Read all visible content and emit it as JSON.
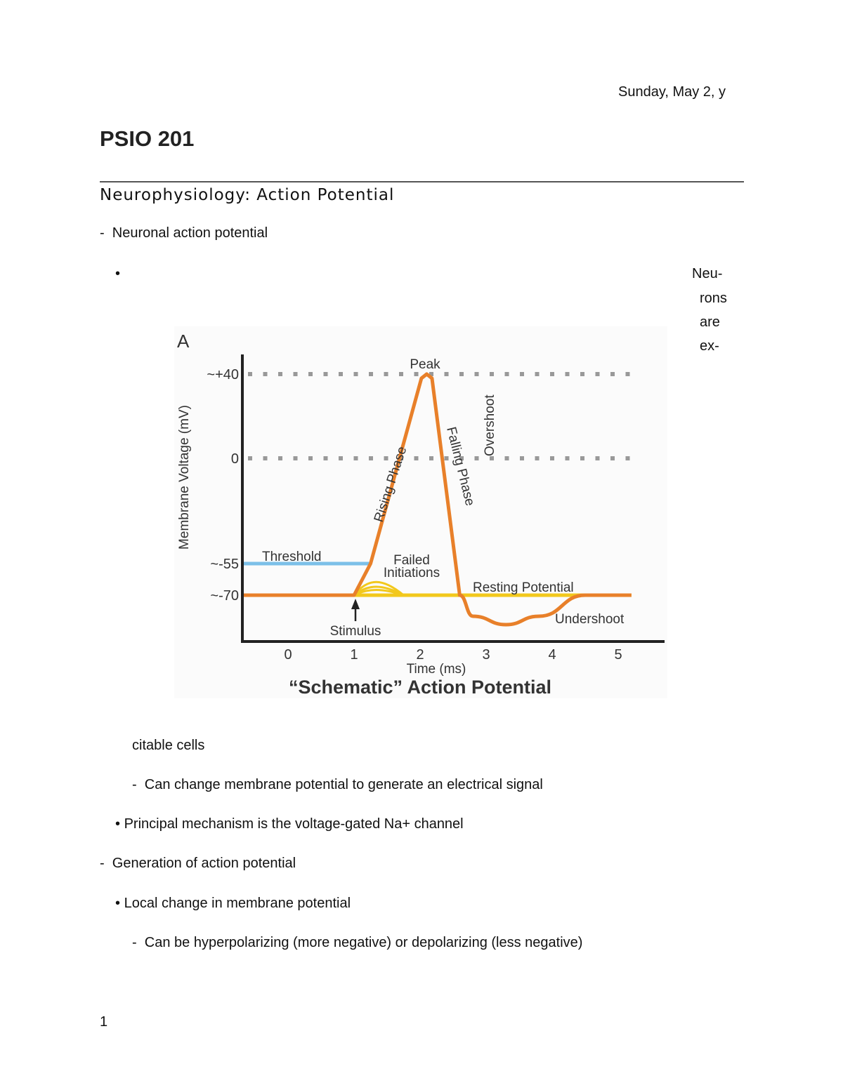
{
  "header": {
    "date": "Sunday, May 2, y"
  },
  "course_title": "PSIO 201",
  "section_heading": "Neurophysiology: Action Potential",
  "bullets": [
    {
      "marker": "-",
      "text": "Neuronal action potential"
    },
    {
      "marker": "•",
      "text": ""
    },
    {
      "text": "citable cells"
    },
    {
      "marker": "-",
      "text": "Can change membrane potential to generate an electrical signal"
    },
    {
      "marker": "•",
      "text": "Principal mechanism is the voltage-gated Na+ channel"
    },
    {
      "marker": "-",
      "text": "Generation of action potential"
    },
    {
      "marker": "•",
      "text": "Local change in membrane potential"
    },
    {
      "marker": "-",
      "text": "Can be hyperpolarizing (more negative) or depolarizing (less negative)"
    }
  ],
  "side_words": [
    "Neu-",
    "rons",
    "are",
    "ex-"
  ],
  "page_number": "1",
  "chart_data": {
    "type": "line",
    "panel_label": "A",
    "title": "“Schematic” Action Potential",
    "xlabel": "Time (ms)",
    "ylabel": "Membrane Voltage (mV)",
    "x_ticks": [
      "0",
      "1",
      "2",
      "3",
      "4",
      "5"
    ],
    "y_ticks": [
      {
        "value": 40,
        "label": "~+40"
      },
      {
        "value": 0,
        "label": "0"
      },
      {
        "value": -55,
        "label": "~-55"
      },
      {
        "value": -70,
        "label": "~-70"
      }
    ],
    "gridlines": "dotted at +40 and 0",
    "series": [
      {
        "color": "#e8802a",
        "points": [
          [
            -0.7,
            -70
          ],
          [
            1,
            -70
          ],
          [
            1.25,
            -55
          ],
          [
            2.02,
            38
          ],
          [
            2.1,
            40
          ],
          [
            2.18,
            38
          ],
          [
            2.6,
            -70
          ],
          [
            2.8,
            -80
          ],
          [
            3.3,
            -84
          ],
          [
            3.8,
            -80
          ],
          [
            4.5,
            -70
          ],
          [
            5.2,
            -70
          ]
        ]
      }
    ],
    "threshold": {
      "value": -55,
      "label": "Threshold",
      "color": "#7cc0e8"
    },
    "resting": {
      "value": -70,
      "label": "Resting Potential",
      "color": "#f2c81c"
    },
    "failed_initiations": {
      "label": "Failed Initiations",
      "peaks": [
        -63,
        -66,
        -68
      ]
    },
    "annotations": [
      "Peak",
      "Rising Phase",
      "Falling Phase",
      "Overshoot",
      "Undershoot",
      "Stimulus"
    ]
  }
}
